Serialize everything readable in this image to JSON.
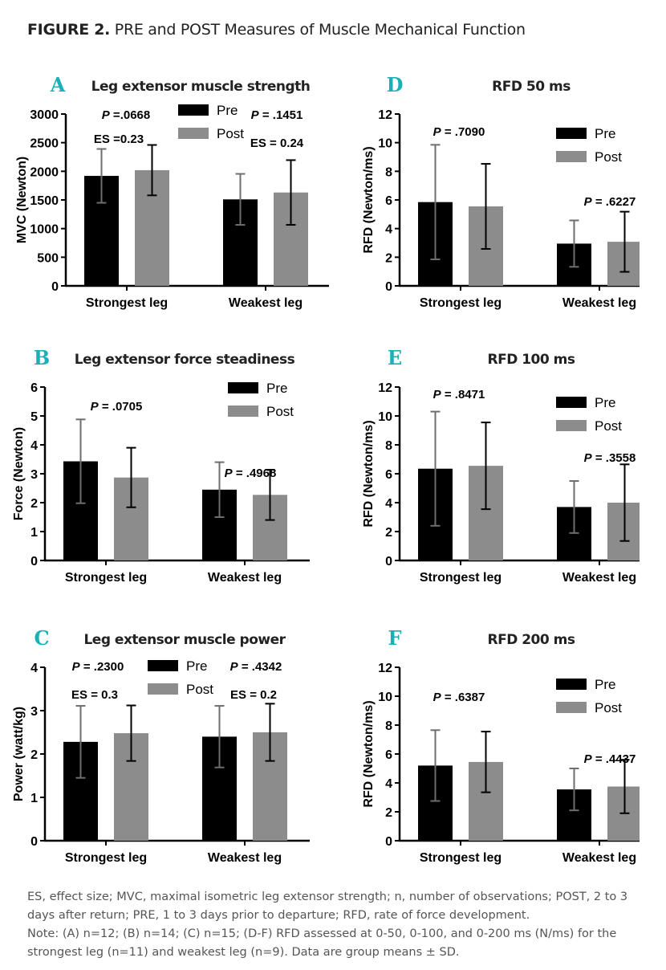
{
  "figure": {
    "label": "FIGURE 2.",
    "title": "PRE and POST Measures of Muscle Mechanical Function"
  },
  "colors": {
    "pre": "#000000",
    "post": "#8c8c8c",
    "panel_letter": "#1ab0b5",
    "pre_error": "#6e6e6e",
    "post_error": "#000000"
  },
  "legend": [
    "Pre",
    "Post"
  ],
  "chart_data": [
    {
      "panel": "A",
      "type": "bar",
      "title": "Leg extensor muscle strength",
      "ylabel": "MVC (Newton)",
      "ylim": [
        0,
        3000
      ],
      "yticks": [
        0,
        500,
        1000,
        1500,
        2000,
        2500,
        3000
      ],
      "categories": [
        "Strongest leg",
        "Weakest leg"
      ],
      "series": [
        {
          "name": "Pre",
          "values": [
            1920,
            1510
          ],
          "sd": [
            470,
            445
          ]
        },
        {
          "name": "Post",
          "values": [
            2020,
            1630
          ],
          "sd": [
            440,
            565
          ]
        }
      ],
      "annotations": [
        "P =.0668",
        "ES =0.23",
        "P = .1451",
        "ES = 0.24"
      ]
    },
    {
      "panel": "B",
      "type": "bar",
      "title": "Leg extensor force steadiness",
      "ylabel": "Force (Newton)",
      "ylim": [
        0,
        6
      ],
      "yticks": [
        0,
        1,
        2,
        3,
        4,
        5,
        6
      ],
      "categories": [
        "Strongest leg",
        "Weakest leg"
      ],
      "series": [
        {
          "name": "Pre",
          "values": [
            3.43,
            2.45
          ],
          "sd": [
            1.45,
            0.95
          ]
        },
        {
          "name": "Post",
          "values": [
            2.87,
            2.27
          ],
          "sd": [
            1.03,
            0.87
          ]
        }
      ],
      "annotations": [
        "P = .0705",
        "P = .4968"
      ]
    },
    {
      "panel": "C",
      "type": "bar",
      "title": "Leg extensor muscle power",
      "ylabel": "Power (watt/kg)",
      "ylim": [
        0,
        4
      ],
      "yticks": [
        0,
        1,
        2,
        3,
        4
      ],
      "categories": [
        "Strongest leg",
        "Weakest leg"
      ],
      "series": [
        {
          "name": "Pre",
          "values": [
            2.28,
            2.4
          ],
          "sd": [
            0.83,
            0.71
          ]
        },
        {
          "name": "Post",
          "values": [
            2.48,
            2.5
          ],
          "sd": [
            0.64,
            0.66
          ]
        }
      ],
      "annotations": [
        "P = .2300",
        "ES = 0.3",
        "P = .4342",
        "ES = 0.2"
      ]
    },
    {
      "panel": "D",
      "type": "bar",
      "title": "RFD 50 ms",
      "ylabel": "RFD (Newton/ms)",
      "ylim": [
        0,
        12
      ],
      "yticks": [
        0,
        2,
        4,
        6,
        8,
        10,
        12
      ],
      "categories": [
        "Strongest leg",
        "Weakest leg"
      ],
      "series": [
        {
          "name": "Pre",
          "values": [
            5.85,
            2.95
          ],
          "sd": [
            4.0,
            1.62
          ]
        },
        {
          "name": "Post",
          "values": [
            5.55,
            3.08
          ],
          "sd": [
            2.97,
            2.1
          ]
        }
      ],
      "annotations": [
        "P = .7090",
        "P = .6227"
      ]
    },
    {
      "panel": "E",
      "type": "bar",
      "title": "RFD 100 ms",
      "ylabel": "RFD (Newton/ms)",
      "ylim": [
        0,
        12
      ],
      "yticks": [
        0,
        2,
        4,
        6,
        8,
        10,
        12
      ],
      "categories": [
        "Strongest leg",
        "Weakest leg"
      ],
      "series": [
        {
          "name": "Pre",
          "values": [
            6.35,
            3.7
          ],
          "sd": [
            3.95,
            1.8
          ]
        },
        {
          "name": "Post",
          "values": [
            6.55,
            4.0
          ],
          "sd": [
            3.0,
            2.65
          ]
        }
      ],
      "annotations": [
        "P = .8471",
        "P = .3558"
      ]
    },
    {
      "panel": "F",
      "type": "bar",
      "title": "RFD 200 ms",
      "ylabel": "RFD (Newton/ms)",
      "ylim": [
        0,
        12
      ],
      "yticks": [
        0,
        2,
        4,
        6,
        8,
        10,
        12
      ],
      "categories": [
        "Strongest leg",
        "Weakest leg"
      ],
      "series": [
        {
          "name": "Pre",
          "values": [
            5.2,
            3.55
          ],
          "sd": [
            2.45,
            1.45
          ]
        },
        {
          "name": "Post",
          "values": [
            5.45,
            3.75
          ],
          "sd": [
            2.1,
            1.85
          ]
        }
      ],
      "annotations": [
        "P = .6387",
        "P = .4437"
      ]
    }
  ],
  "notes": {
    "line1": "ES, effect size; MVC, maximal isometric leg extensor strength; n, number of observations; POST, 2 to 3 days after return; PRE, 1 to 3 days prior to departure; RFD, rate of force development.",
    "line2": "Note: (A) n=12; (B) n=14; (C) n=15; (D-F) RFD assessed at 0-50, 0-100, and 0-200 ms (N/ms) for the strongest leg (n=11) and weakest leg (n=9). Data are group means ± SD."
  }
}
